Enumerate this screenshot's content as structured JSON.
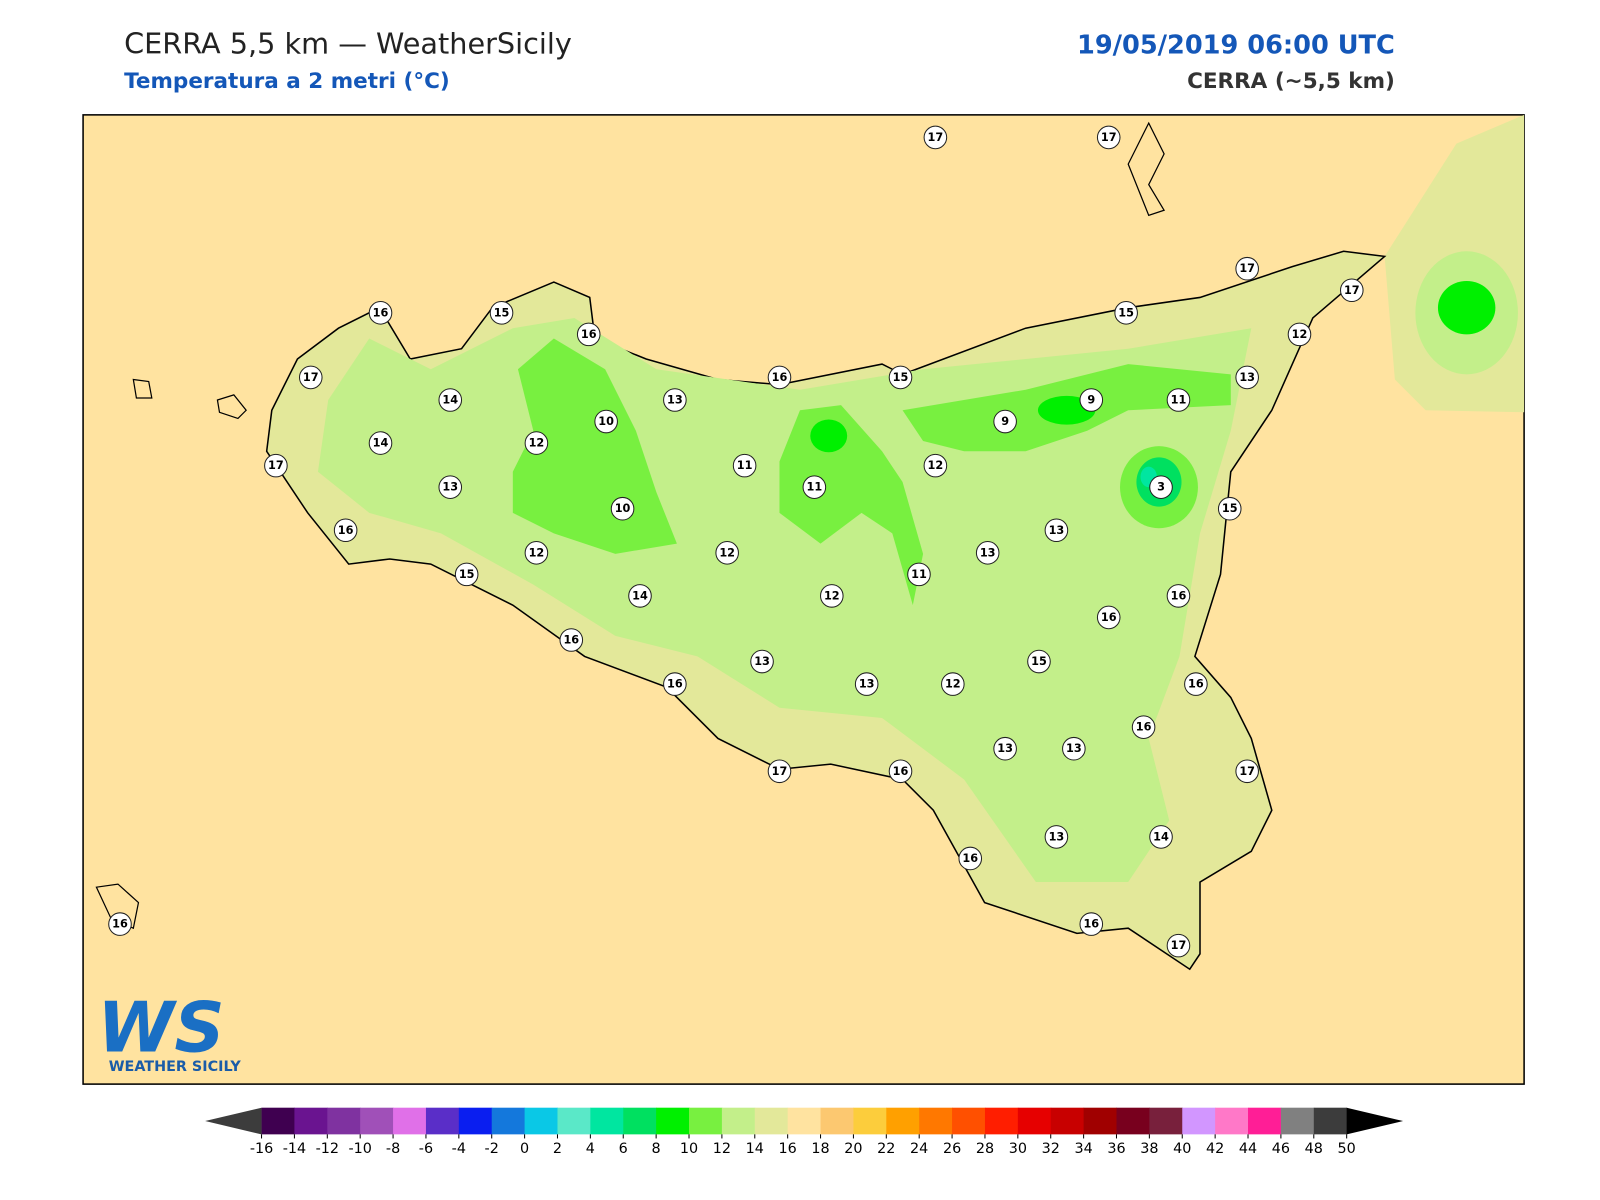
{
  "header": {
    "title": "CERRA 5,5 km — WeatherSicily",
    "subtitle": "Temperatura a 2 metri (°C)",
    "date": "19/05/2019 06:00 UTC",
    "model": "CERRA (~5,5 km)"
  },
  "stations": [
    17,
    17,
    17,
    17,
    16,
    15,
    16,
    15,
    12,
    17,
    16,
    15,
    13,
    14,
    13,
    9,
    11,
    10,
    9,
    14,
    12,
    17,
    11,
    12,
    13,
    11,
    3,
    10,
    15,
    16,
    13,
    12,
    12,
    13,
    15,
    11,
    14,
    12,
    16,
    16,
    16,
    15,
    13,
    16,
    13,
    12,
    16,
    16,
    13,
    13,
    17,
    16,
    17,
    13,
    14,
    16,
    16,
    17,
    16
  ],
  "logo": {
    "mark": "WS",
    "name": "WEATHER SICILY"
  },
  "colorbar": {
    "ticks": [
      -16,
      -14,
      -12,
      -10,
      -8,
      -6,
      -4,
      -2,
      0,
      2,
      4,
      6,
      8,
      10,
      12,
      14,
      16,
      18,
      20,
      22,
      24,
      26,
      28,
      30,
      32,
      34,
      36,
      38,
      40,
      42,
      44,
      46,
      48,
      50
    ],
    "colors": [
      "#3f0050",
      "#6a1490",
      "#7f32a0",
      "#a050b8",
      "#e070e8",
      "#5a2ec8",
      "#0a1ef0",
      "#1478dc",
      "#0ac8e6",
      "#5ae8c8",
      "#00e6a0",
      "#00e060",
      "#00f000",
      "#78f040",
      "#c3ef8a",
      "#e3e89a",
      "#ffe3a0",
      "#fcc870",
      "#fccd3c",
      "#ffa000",
      "#ff7800",
      "#ff5000",
      "#ff1e00",
      "#e60000",
      "#c80000",
      "#a00000",
      "#78001e",
      "#78203c",
      "#d296ff",
      "#ff78c8",
      "#ff1e96",
      "#808080",
      "#3c3c3c"
    ],
    "under": "#3c3c3c",
    "over": "#000000"
  }
}
